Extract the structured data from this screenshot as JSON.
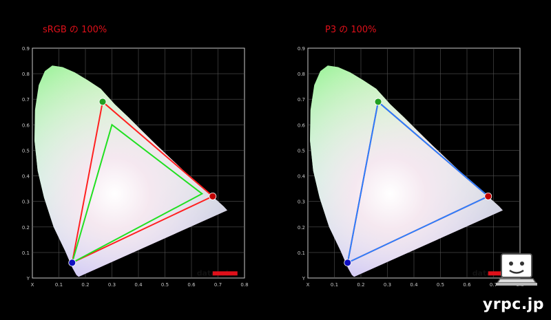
{
  "chart_data": [
    {
      "type": "scatter",
      "title": "sRGB の 100%",
      "xlim": [
        0,
        0.8
      ],
      "ylim": [
        0,
        0.9
      ],
      "x_ticks": [
        "X",
        "0.1",
        "0.2",
        "0.3",
        "0.4",
        "0.5",
        "0.6",
        "0.7",
        "0.8"
      ],
      "y_ticks": [
        "Y",
        "0.1",
        "0.2",
        "0.3",
        "0.4",
        "0.5",
        "0.6",
        "0.7",
        "0.8",
        "0.9"
      ],
      "grid": true,
      "series": [
        {
          "color": "#ff2020",
          "points": [
            [
              0.68,
              0.32
            ],
            [
              0.265,
              0.69
            ],
            [
              0.15,
              0.06
            ]
          ]
        },
        {
          "color": "#20e020",
          "points": [
            [
              0.64,
              0.33
            ],
            [
              0.3,
              0.6
            ],
            [
              0.15,
              0.06
            ]
          ]
        }
      ],
      "markers": [
        {
          "color": "#c00000",
          "point": [
            0.68,
            0.32
          ]
        },
        {
          "color": "#20a020",
          "point": [
            0.265,
            0.69
          ]
        },
        {
          "color": "#1010c0",
          "point": [
            0.15,
            0.06
          ]
        }
      ],
      "brand": "datacolor"
    },
    {
      "type": "scatter",
      "title": "P3 の 100%",
      "xlim": [
        0,
        0.8
      ],
      "ylim": [
        0,
        0.9
      ],
      "x_ticks": [
        "X",
        "0.1",
        "0.2",
        "0.3",
        "0.4",
        "0.5",
        "0.6",
        "0.7",
        "0.8"
      ],
      "y_ticks": [
        "Y",
        "0.1",
        "0.2",
        "0.3",
        "0.4",
        "0.5",
        "0.6",
        "0.7",
        "0.8",
        "0.9"
      ],
      "grid": true,
      "series": [
        {
          "color": "#ff2020",
          "points": [
            [
              0.68,
              0.32
            ],
            [
              0.265,
              0.69
            ],
            [
              0.15,
              0.06
            ]
          ]
        },
        {
          "color": "#2a7fff",
          "points": [
            [
              0.68,
              0.32
            ],
            [
              0.265,
              0.69
            ],
            [
              0.15,
              0.06
            ]
          ]
        }
      ],
      "markers": [
        {
          "color": "#c00000",
          "point": [
            0.68,
            0.32
          ]
        },
        {
          "color": "#20a020",
          "point": [
            0.265,
            0.69
          ]
        },
        {
          "color": "#1010c0",
          "point": [
            0.15,
            0.06
          ]
        }
      ],
      "brand": "datacolor"
    }
  ],
  "watermark": "yrpc.jp",
  "locus": [
    [
      0.175,
      0.005
    ],
    [
      0.174,
      0.005
    ],
    [
      0.166,
      0.012
    ],
    [
      0.151,
      0.04
    ],
    [
      0.124,
      0.105
    ],
    [
      0.08,
      0.2
    ],
    [
      0.044,
      0.315
    ],
    [
      0.02,
      0.42
    ],
    [
      0.008,
      0.538
    ],
    [
      0.01,
      0.658
    ],
    [
      0.024,
      0.755
    ],
    [
      0.047,
      0.81
    ],
    [
      0.075,
      0.832
    ],
    [
      0.114,
      0.826
    ],
    [
      0.16,
      0.805
    ],
    [
      0.208,
      0.775
    ],
    [
      0.258,
      0.741
    ],
    [
      0.311,
      0.68
    ],
    [
      0.363,
      0.629
    ],
    [
      0.413,
      0.577
    ],
    [
      0.467,
      0.522
    ],
    [
      0.52,
      0.47
    ],
    [
      0.571,
      0.42
    ],
    [
      0.622,
      0.371
    ],
    [
      0.666,
      0.33
    ],
    [
      0.695,
      0.305
    ],
    [
      0.722,
      0.28
    ],
    [
      0.735,
      0.265
    ]
  ]
}
